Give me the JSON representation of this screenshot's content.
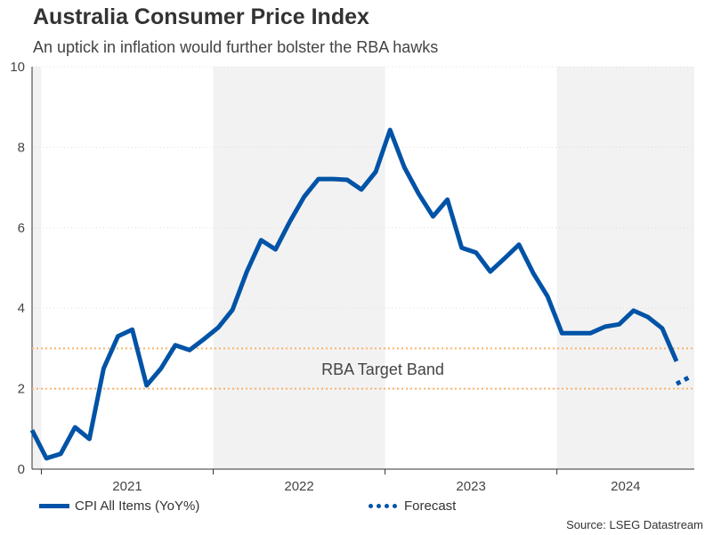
{
  "chart_data": {
    "type": "line",
    "title": "Australia Consumer Price Index",
    "subtitle": "An uptick in inflation would further bolster the RBA hawks",
    "ylim": [
      0,
      10
    ],
    "yticks": [
      0,
      2,
      4,
      6,
      8,
      10
    ],
    "xticks": [
      "2021",
      "2022",
      "2023",
      "2024"
    ],
    "shaded_years": [
      "2020",
      "2022",
      "2024"
    ],
    "grid": "faint horizontal",
    "legend_placement": "bottom",
    "annotation": "RBA Target Band",
    "target_band": [
      2,
      3
    ],
    "colors": {
      "series": "#0053a6",
      "band": "#f9b46b",
      "shade": "#f2f2f2"
    },
    "series": [
      {
        "name": "CPI All Items (YoY%)",
        "style": "solid",
        "x": [
          "2020-12",
          "2021-01",
          "2021-02",
          "2021-03",
          "2021-04",
          "2021-05",
          "2021-06",
          "2021-07",
          "2021-08",
          "2021-09",
          "2021-10",
          "2021-11",
          "2021-12",
          "2022-01",
          "2022-02",
          "2022-03",
          "2022-04",
          "2022-05",
          "2022-06",
          "2022-07",
          "2022-08",
          "2022-09",
          "2022-10",
          "2022-11",
          "2022-12",
          "2023-01",
          "2023-02",
          "2023-03",
          "2023-04",
          "2023-05",
          "2023-06",
          "2023-07",
          "2023-08",
          "2023-09",
          "2023-10",
          "2023-11",
          "2023-12",
          "2024-01",
          "2024-02",
          "2024-03",
          "2024-04",
          "2024-05",
          "2024-06",
          "2024-07",
          "2024-08",
          "2024-09"
        ],
        "values": [
          0.97,
          0.27,
          0.38,
          1.04,
          0.75,
          2.5,
          3.3,
          3.47,
          2.08,
          2.5,
          3.08,
          2.96,
          3.23,
          3.52,
          3.96,
          4.91,
          5.69,
          5.46,
          6.15,
          6.77,
          7.21,
          7.21,
          7.19,
          6.95,
          7.39,
          8.43,
          7.5,
          6.84,
          6.28,
          6.7,
          5.5,
          5.38,
          4.91,
          5.24,
          5.58,
          4.87,
          4.29,
          3.38,
          3.38,
          3.38,
          3.54,
          3.6,
          3.94,
          3.78,
          3.5,
          2.68
        ]
      },
      {
        "name": "Forecast",
        "style": "dotted",
        "x": [
          "2024-09",
          "2024-10"
        ],
        "values": [
          2.12,
          2.3
        ]
      }
    ]
  },
  "source": "Source: LSEG Datastream"
}
